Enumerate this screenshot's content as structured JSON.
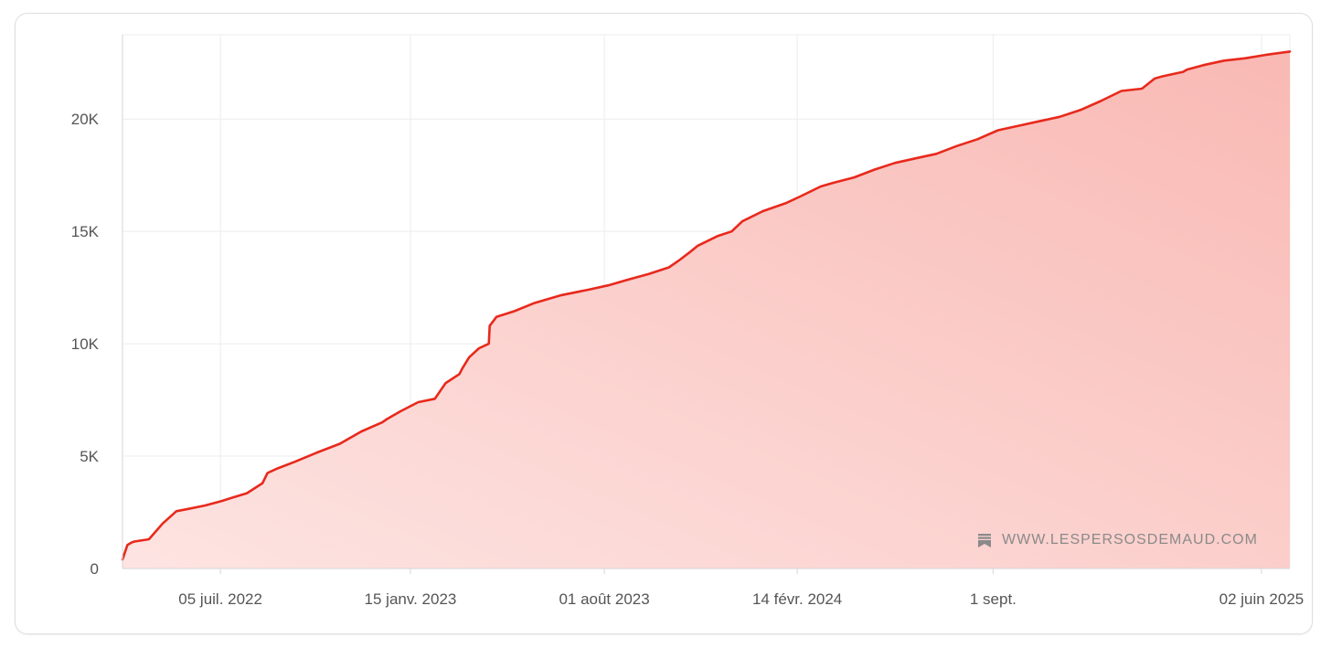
{
  "colors": {
    "line": "#e8291c",
    "fill_top": "#f9b9b4",
    "fill_bottom": "#fde4e2",
    "grid": "#ececec",
    "axis": "#d6d6d6"
  },
  "watermark": {
    "text": "WWW.LESPERSOSDEMAUD.COM",
    "icon": "bookmark-icon"
  },
  "chart_data": {
    "type": "area",
    "title": "",
    "xlabel": "",
    "ylabel": "",
    "grid": true,
    "x_range": [
      "2022-03-27",
      "2025-07-01"
    ],
    "ylim": [
      0,
      23750
    ],
    "x_ticks": [
      {
        "date": "2022-07-05",
        "label": "05 juil. 2022"
      },
      {
        "date": "2023-01-15",
        "label": "15 janv. 2023"
      },
      {
        "date": "2023-08-01",
        "label": "01 août 2023"
      },
      {
        "date": "2024-02-14",
        "label": "14 févr. 2024"
      },
      {
        "date": "2024-09-01",
        "label": "1 sept."
      },
      {
        "date": "2025-06-02",
        "label": "02 juin 2025"
      }
    ],
    "y_ticks": [
      {
        "value": 0,
        "label": "0"
      },
      {
        "value": 5000,
        "label": "5K"
      },
      {
        "value": 10000,
        "label": "10K"
      },
      {
        "value": 15000,
        "label": "15K"
      },
      {
        "value": 20000,
        "label": "20K"
      }
    ],
    "series": [
      {
        "x": [
          "2022-03-27",
          "2022-04-01",
          "2022-04-05",
          "2022-04-08",
          "2022-04-23",
          "2022-05-07",
          "2022-05-21",
          "2022-06-02",
          "2022-06-19",
          "2022-07-06",
          "2022-07-17",
          "2022-08-01",
          "2022-08-17",
          "2022-08-22",
          "2022-09-01",
          "2022-09-19",
          "2022-10-11",
          "2022-11-04",
          "2022-11-26",
          "2022-12-17",
          "2022-12-22",
          "2023-01-05",
          "2023-01-23",
          "2023-02-09",
          "2023-02-16",
          "2023-02-20",
          "2023-03-06",
          "2023-03-09",
          "2023-03-16",
          "2023-03-26",
          "2023-04-05",
          "2023-04-06",
          "2023-04-13",
          "2023-05-01",
          "2023-05-21",
          "2023-06-17",
          "2023-07-15",
          "2023-08-05",
          "2023-08-25",
          "2023-09-15",
          "2023-10-06",
          "2023-10-16",
          "2023-10-28",
          "2023-11-04",
          "2023-11-25",
          "2023-12-09",
          "2023-12-20",
          "2024-01-10",
          "2024-02-02",
          "2024-02-17",
          "2024-03-09",
          "2024-03-21",
          "2024-04-12",
          "2024-05-03",
          "2024-05-24",
          "2024-06-14",
          "2024-07-05",
          "2024-07-26",
          "2024-08-16",
          "2024-09-06",
          "2024-09-27",
          "2024-10-18",
          "2024-11-08",
          "2024-11-29",
          "2024-12-20",
          "2025-01-10",
          "2025-01-31",
          "2025-02-13",
          "2025-02-21",
          "2025-03-14",
          "2025-03-18",
          "2025-04-04",
          "2025-04-25",
          "2025-05-16",
          "2025-06-06",
          "2025-07-01"
        ],
        "values": [
          400,
          1050,
          1150,
          1200,
          1300,
          2000,
          2550,
          2650,
          2800,
          3000,
          3150,
          3350,
          3800,
          4250,
          4450,
          4750,
          5150,
          5550,
          6100,
          6500,
          6650,
          7000,
          7400,
          7550,
          8000,
          8250,
          8650,
          8900,
          9400,
          9800,
          10000,
          10800,
          11200,
          11450,
          11800,
          12150,
          12400,
          12600,
          12850,
          13100,
          13400,
          13700,
          14100,
          14350,
          14800,
          15000,
          15450,
          15900,
          16250,
          16550,
          17000,
          17150,
          17400,
          17750,
          18050,
          18250,
          18450,
          18800,
          19100,
          19500,
          19700,
          19900,
          20100,
          20400,
          20800,
          21250,
          21350,
          21800,
          21900,
          22100,
          22200,
          22400,
          22600,
          22700,
          22850,
          23000
        ]
      }
    ]
  }
}
